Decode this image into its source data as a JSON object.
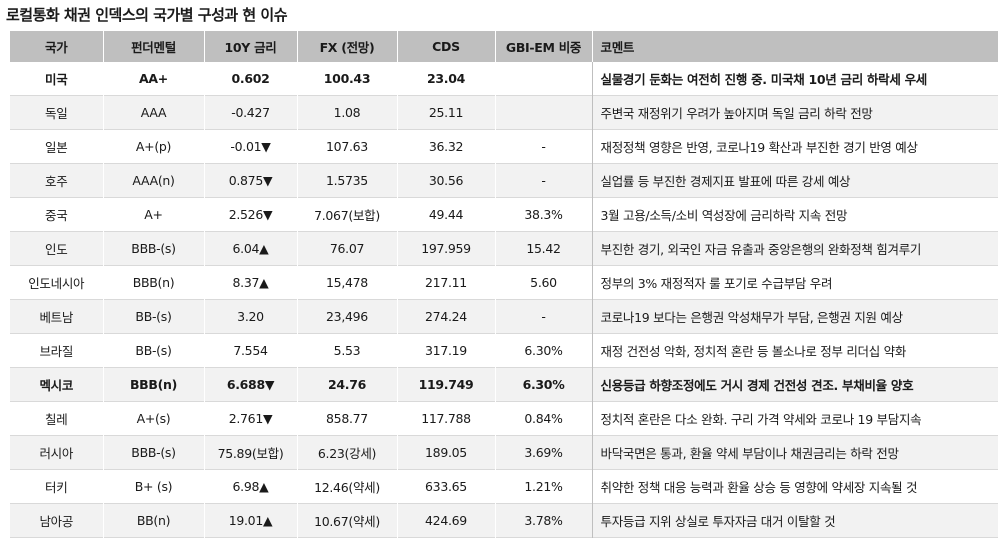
{
  "title": "로컬통화 채권 인덱스의 국가별 구성과 현 이슈",
  "headers": [
    "국가",
    "펀더멘털",
    "10Y 금리",
    "FX (전망)",
    "CDS",
    "GBI-EM 비중",
    "코멘트"
  ],
  "rows": [
    {
      "country": "미국",
      "fundamental": "AA+",
      "yield": "0.602",
      "fx": "100.43",
      "cds": "23.04",
      "weight": "",
      "comment": "실물경기 둔화는 여전히 진행 중. 미국채 10년 금리 하락세 우세",
      "bold": true
    },
    {
      "country": "독일",
      "fundamental": "AAA",
      "yield": "-0.427",
      "fx": "1.08",
      "cds": "25.11",
      "weight": "",
      "comment": "주변국 재정위기 우려가 높아지며 독일 금리 하락 전망",
      "bold": false
    },
    {
      "country": "일본",
      "fundamental": "A+(p)",
      "yield": "-0.01▼",
      "fx": "107.63",
      "cds": "36.32",
      "weight": "-",
      "comment": "재정정책 영향은 반영, 코로나19 확산과 부진한 경기 반영 예상",
      "bold": false
    },
    {
      "country": "호주",
      "fundamental": "AAA(n)",
      "yield": "0.875▼",
      "fx": "1.5735",
      "cds": "30.56",
      "weight": "-",
      "comment": "실업률 등 부진한 경제지표 발표에 따른 강세 예상",
      "bold": false
    },
    {
      "country": "중국",
      "fundamental": "A+",
      "yield": "2.526▼",
      "fx": "7.067(보합)",
      "cds": "49.44",
      "weight": "38.3%",
      "comment": "3월 고용/소득/소비 역성장에 금리하락 지속 전망",
      "bold": false
    },
    {
      "country": "인도",
      "fundamental": "BBB-(s)",
      "yield": "6.04▲",
      "fx": "76.07",
      "cds": "197.959",
      "weight": "15.42",
      "comment": "부진한 경기, 외국인 자금 유출과 중앙은행의 완화정책 힘겨루기",
      "bold": false
    },
    {
      "country": "인도네시아",
      "fundamental": "BBB(n)",
      "yield": "8.37▲",
      "fx": "15,478",
      "cds": "217.11",
      "weight": "5.60",
      "comment": "정부의 3% 재정적자 룰 포기로 수급부담 우려",
      "bold": false
    },
    {
      "country": "베트남",
      "fundamental": "BB-(s)",
      "yield": "3.20",
      "fx": "23,496",
      "cds": "274.24",
      "weight": "-",
      "comment": "코로나19 보다는 은행권 악성채무가 부담, 은행권 지원 예상",
      "bold": false
    },
    {
      "country": "브라질",
      "fundamental": "BB-(s)",
      "yield": "7.554",
      "fx": "5.53",
      "cds": "317.19",
      "weight": "6.30%",
      "comment": "재정 건전성 악화, 정치적 혼란 등 볼소나로 정부 리더십 약화",
      "bold": false
    },
    {
      "country": "멕시코",
      "fundamental": "BBB(n)",
      "yield": "6.688▼",
      "fx": "24.76",
      "cds": "119.749",
      "weight": "6.30%",
      "comment": "신용등급 하향조정에도 거시 경제 건전성 견조. 부채비율 양호",
      "bold": true
    },
    {
      "country": "칠레",
      "fundamental": "A+(s)",
      "yield": "2.761▼",
      "fx": "858.77",
      "cds": "117.788",
      "weight": "0.84%",
      "comment": "정치적 혼란은 다소 완화. 구리 가격 약세와 코로나 19 부담지속",
      "bold": false
    },
    {
      "country": "러시아",
      "fundamental": "BBB-(s)",
      "yield": "75.89(보합)",
      "fx": "6.23(강세)",
      "cds": "189.05",
      "weight": "3.69%",
      "comment": "바닥국면은 통과, 환율 약세 부담이나 채권금리는 하락 전망",
      "bold": false
    },
    {
      "country": "터키",
      "fundamental": "B+ (s)",
      "yield": "6.98▲",
      "fx": "12.46(약세)",
      "cds": "633.65",
      "weight": "1.21%",
      "comment": "취약한 정책 대응 능력과 환율 상승 등 영향에 약세장 지속될 것",
      "bold": false
    },
    {
      "country": "남아공",
      "fundamental": "BB(n)",
      "yield": "19.01▲",
      "fx": "10.67(약세)",
      "cds": "424.69",
      "weight": "3.78%",
      "comment": "투자등급 지위 상실로 투자자금 대거 이탈할 것",
      "bold": false
    }
  ]
}
